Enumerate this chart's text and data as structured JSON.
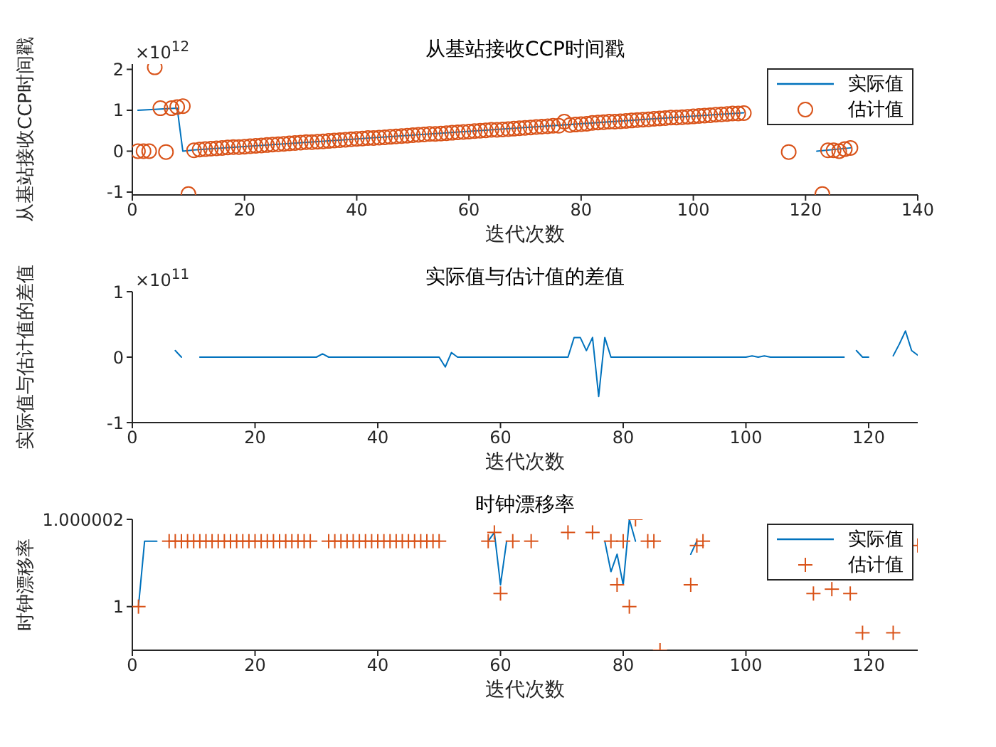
{
  "chart_data": [
    {
      "type": "line",
      "title": "从基站接收CCP时间戳",
      "xlabel": "迭代次数",
      "ylabel": "从基站接收CCP时间戳",
      "annotations": [
        "×10$^{12}$"
      ],
      "xlim": [
        0,
        140
      ],
      "xticks": [
        0,
        20,
        40,
        60,
        80,
        100,
        120,
        140
      ],
      "ylim": [
        -1.07,
        2.13
      ],
      "yticks": [
        -1,
        0,
        1,
        2
      ],
      "legend": "top right",
      "series": [
        {
          "name": "实际值",
          "marker": "none",
          "color": "#0072bd",
          "x": [
            1,
            8,
            9,
            11,
            109,
            121,
            122,
            128
          ],
          "values": [
            1.0,
            1.05,
            0,
            0.03,
            0.94,
            null,
            0,
            0.08
          ]
        },
        {
          "name": "估计值",
          "type": "scatter",
          "marker": "circle",
          "color": "#d95319",
          "x": [
            1,
            2,
            3,
            4,
            5,
            6,
            7,
            8,
            9,
            10,
            11,
            12,
            13,
            14,
            15,
            16,
            17,
            18,
            19,
            20,
            21,
            22,
            23,
            24,
            25,
            26,
            27,
            28,
            29,
            30,
            31,
            32,
            33,
            34,
            35,
            36,
            37,
            38,
            39,
            40,
            41,
            42,
            43,
            44,
            45,
            46,
            47,
            48,
            49,
            50,
            51,
            52,
            53,
            54,
            55,
            56,
            57,
            58,
            59,
            60,
            61,
            62,
            63,
            64,
            65,
            66,
            67,
            68,
            69,
            70,
            71,
            72,
            73,
            74,
            75,
            76,
            77,
            78,
            79,
            80,
            81,
            82,
            83,
            84,
            85,
            86,
            87,
            88,
            89,
            90,
            91,
            92,
            93,
            94,
            95,
            96,
            97,
            98,
            99,
            100,
            101,
            102,
            103,
            104,
            105,
            106,
            107,
            108,
            109,
            110,
            111,
            112,
            113,
            114,
            115,
            116,
            117,
            118,
            119,
            120,
            121,
            122,
            123,
            124,
            125,
            126,
            127,
            128
          ],
          "values": [
            0,
            0,
            0,
            2.05,
            1.05,
            -0.02,
            1.05,
            1.08,
            1.1,
            -1.05,
            0.02,
            0.04,
            0.05,
            0.06,
            0.07,
            0.08,
            0.09,
            0.1,
            0.1,
            0.11,
            0.12,
            0.13,
            0.14,
            0.15,
            0.16,
            0.17,
            0.18,
            0.19,
            0.2,
            0.21,
            0.22,
            0.22,
            0.23,
            0.24,
            0.25,
            0.26,
            0.27,
            0.28,
            0.29,
            0.3,
            0.31,
            0.32,
            0.32,
            0.33,
            0.34,
            0.35,
            0.36,
            0.37,
            0.38,
            0.39,
            0.4,
            0.41,
            0.42,
            0.42,
            0.43,
            0.44,
            0.45,
            0.46,
            0.47,
            0.48,
            0.49,
            0.5,
            0.51,
            0.52,
            0.52,
            0.53,
            0.54,
            0.55,
            0.56,
            0.57,
            0.58,
            0.59,
            0.6,
            0.61,
            0.62,
            0.62,
            0.72,
            0.64,
            0.65,
            0.66,
            0.67,
            0.69,
            0.7,
            0.71,
            0.72,
            0.72,
            0.73,
            0.74,
            0.75,
            0.76,
            0.77,
            0.78,
            0.79,
            0.8,
            0.81,
            0.82,
            0.82,
            0.83,
            0.84,
            0.85,
            0.86,
            0.87,
            0.88,
            0.89,
            0.9,
            0.91,
            0.92,
            0.92,
            0.93,
            null,
            null,
            null,
            null,
            null,
            null,
            null,
            -0.02,
            null,
            null,
            null,
            null,
            null,
            -1.05,
            0.02,
            0.02,
            0,
            0.05,
            0.08
          ]
        }
      ]
    },
    {
      "type": "line",
      "title": "实际值与估计值的差值",
      "xlabel": "迭代次数",
      "ylabel": "实际值与估计值的差值",
      "annotations": [
        "×10$^{11}$"
      ],
      "xlim": [
        0,
        128
      ],
      "xticks": [
        0,
        20,
        40,
        60,
        80,
        100,
        120
      ],
      "ylim": [
        -1,
        1
      ],
      "yticks": [
        -1,
        0,
        1
      ],
      "series": [
        {
          "marker": "none",
          "color": "#0072bd",
          "x": [
            7,
            8,
            9,
            11,
            30,
            31,
            32,
            33,
            50,
            51,
            52,
            53,
            54,
            71,
            72,
            73,
            74,
            75,
            76,
            77,
            78,
            100,
            101,
            102,
            103,
            104,
            116,
            117,
            118,
            119,
            120,
            121,
            124,
            125,
            126,
            127,
            128
          ],
          "values": [
            0.1,
            0,
            null,
            0,
            0,
            0.05,
            0,
            0,
            0,
            -0.15,
            0.07,
            0,
            0,
            0,
            0.3,
            0.3,
            0.1,
            0.3,
            -0.6,
            0.3,
            0,
            0,
            0.02,
            0,
            0.02,
            0,
            0,
            null,
            0.1,
            0,
            0,
            null,
            0.02,
            0.2,
            0.4,
            0.1,
            0.03
          ]
        }
      ]
    },
    {
      "type": "line",
      "title": "时钟漂移率",
      "xlabel": "迭代次数",
      "ylabel": "时钟漂移率",
      "xlim": [
        0,
        128
      ],
      "xticks": [
        0,
        20,
        40,
        60,
        80,
        100,
        120
      ],
      "ylim": [
        0.999999,
        1.000002
      ],
      "yticks": [
        1,
        1.000002
      ],
      "legend": "top right",
      "series": [
        {
          "name": "实际值",
          "marker": "none",
          "color": "#0072bd",
          "x": [
            1,
            2,
            4,
            5,
            58,
            59,
            60,
            61,
            63,
            77,
            78,
            79,
            80,
            81,
            82,
            86,
            91,
            92
          ],
          "values": [
            1,
            1.0000015,
            1.0000015,
            null,
            1.0000015,
            1.0000017,
            1.0000005,
            1.0000015,
            null,
            1.0000015,
            1.0000008,
            1.0000012,
            1.0000005,
            1.000002,
            1.0000015,
            null,
            1.0000012,
            1.0000015
          ]
        },
        {
          "name": "估计值",
          "type": "scatter",
          "marker": "cross",
          "color": "#d95319",
          "x": [
            1,
            2,
            3,
            4,
            5,
            6,
            7,
            8,
            9,
            10,
            11,
            12,
            13,
            14,
            15,
            16,
            17,
            18,
            19,
            20,
            21,
            22,
            23,
            24,
            25,
            26,
            27,
            28,
            29,
            30,
            31,
            32,
            33,
            34,
            35,
            36,
            37,
            38,
            39,
            40,
            41,
            42,
            43,
            44,
            45,
            46,
            47,
            48,
            49,
            50,
            51,
            52,
            53,
            54,
            55,
            56,
            57,
            58,
            59,
            60,
            61,
            62,
            63,
            64,
            65,
            66,
            67,
            68,
            69,
            70,
            71,
            72,
            73,
            74,
            75,
            76,
            77,
            78,
            79,
            80,
            81,
            82,
            83,
            84,
            85,
            86,
            87,
            88,
            89,
            90,
            91,
            92,
            93,
            94,
            95,
            96,
            97,
            98,
            99,
            100,
            101,
            102,
            103,
            104,
            105,
            106,
            107,
            108,
            109,
            110,
            111,
            112,
            113,
            114,
            115,
            116,
            117,
            118,
            119,
            120,
            121,
            122,
            123,
            124,
            125,
            126,
            127,
            128
          ],
          "values": [
            1,
            null,
            null,
            null,
            null,
            1.0000015,
            1.0000015,
            1.0000015,
            1.0000015,
            1.0000015,
            1.0000015,
            1.0000015,
            1.0000015,
            1.0000015,
            1.0000015,
            1.0000015,
            1.0000015,
            1.0000015,
            1.0000015,
            1.0000015,
            1.0000015,
            1.0000015,
            1.0000015,
            1.0000015,
            1.0000015,
            1.0000015,
            1.0000015,
            1.0000015,
            1.0000015,
            null,
            null,
            1.0000015,
            1.0000015,
            1.0000015,
            1.0000015,
            1.0000015,
            1.0000015,
            1.0000015,
            1.0000015,
            1.0000015,
            1.0000015,
            1.0000015,
            1.0000015,
            1.0000015,
            1.0000015,
            1.0000015,
            1.0000015,
            1.0000015,
            1.0000015,
            1.0000015,
            null,
            null,
            null,
            null,
            null,
            null,
            null,
            1.0000015,
            1.0000017,
            1.0000003,
            null,
            1.0000015,
            null,
            null,
            1.0000015,
            null,
            null,
            null,
            null,
            null,
            1.0000017,
            null,
            null,
            null,
            1.0000017,
            null,
            null,
            1.0000015,
            1.0000005,
            1.0000015,
            1,
            1.000002,
            null,
            1.0000015,
            1.0000015,
            0.999999,
            null,
            null,
            null,
            null,
            1.0000005,
            1.0000014,
            1.0000015,
            null,
            null,
            null,
            null,
            null,
            null,
            null,
            null,
            null,
            null,
            null,
            null,
            null,
            null,
            null,
            null,
            null,
            1.0000003,
            null,
            null,
            1.0000004,
            null,
            null,
            1.0000003,
            null,
            0.9999994,
            null,
            null,
            null,
            null,
            0.9999994,
            null,
            null,
            null,
            1.0000014
          ]
        }
      ]
    }
  ]
}
